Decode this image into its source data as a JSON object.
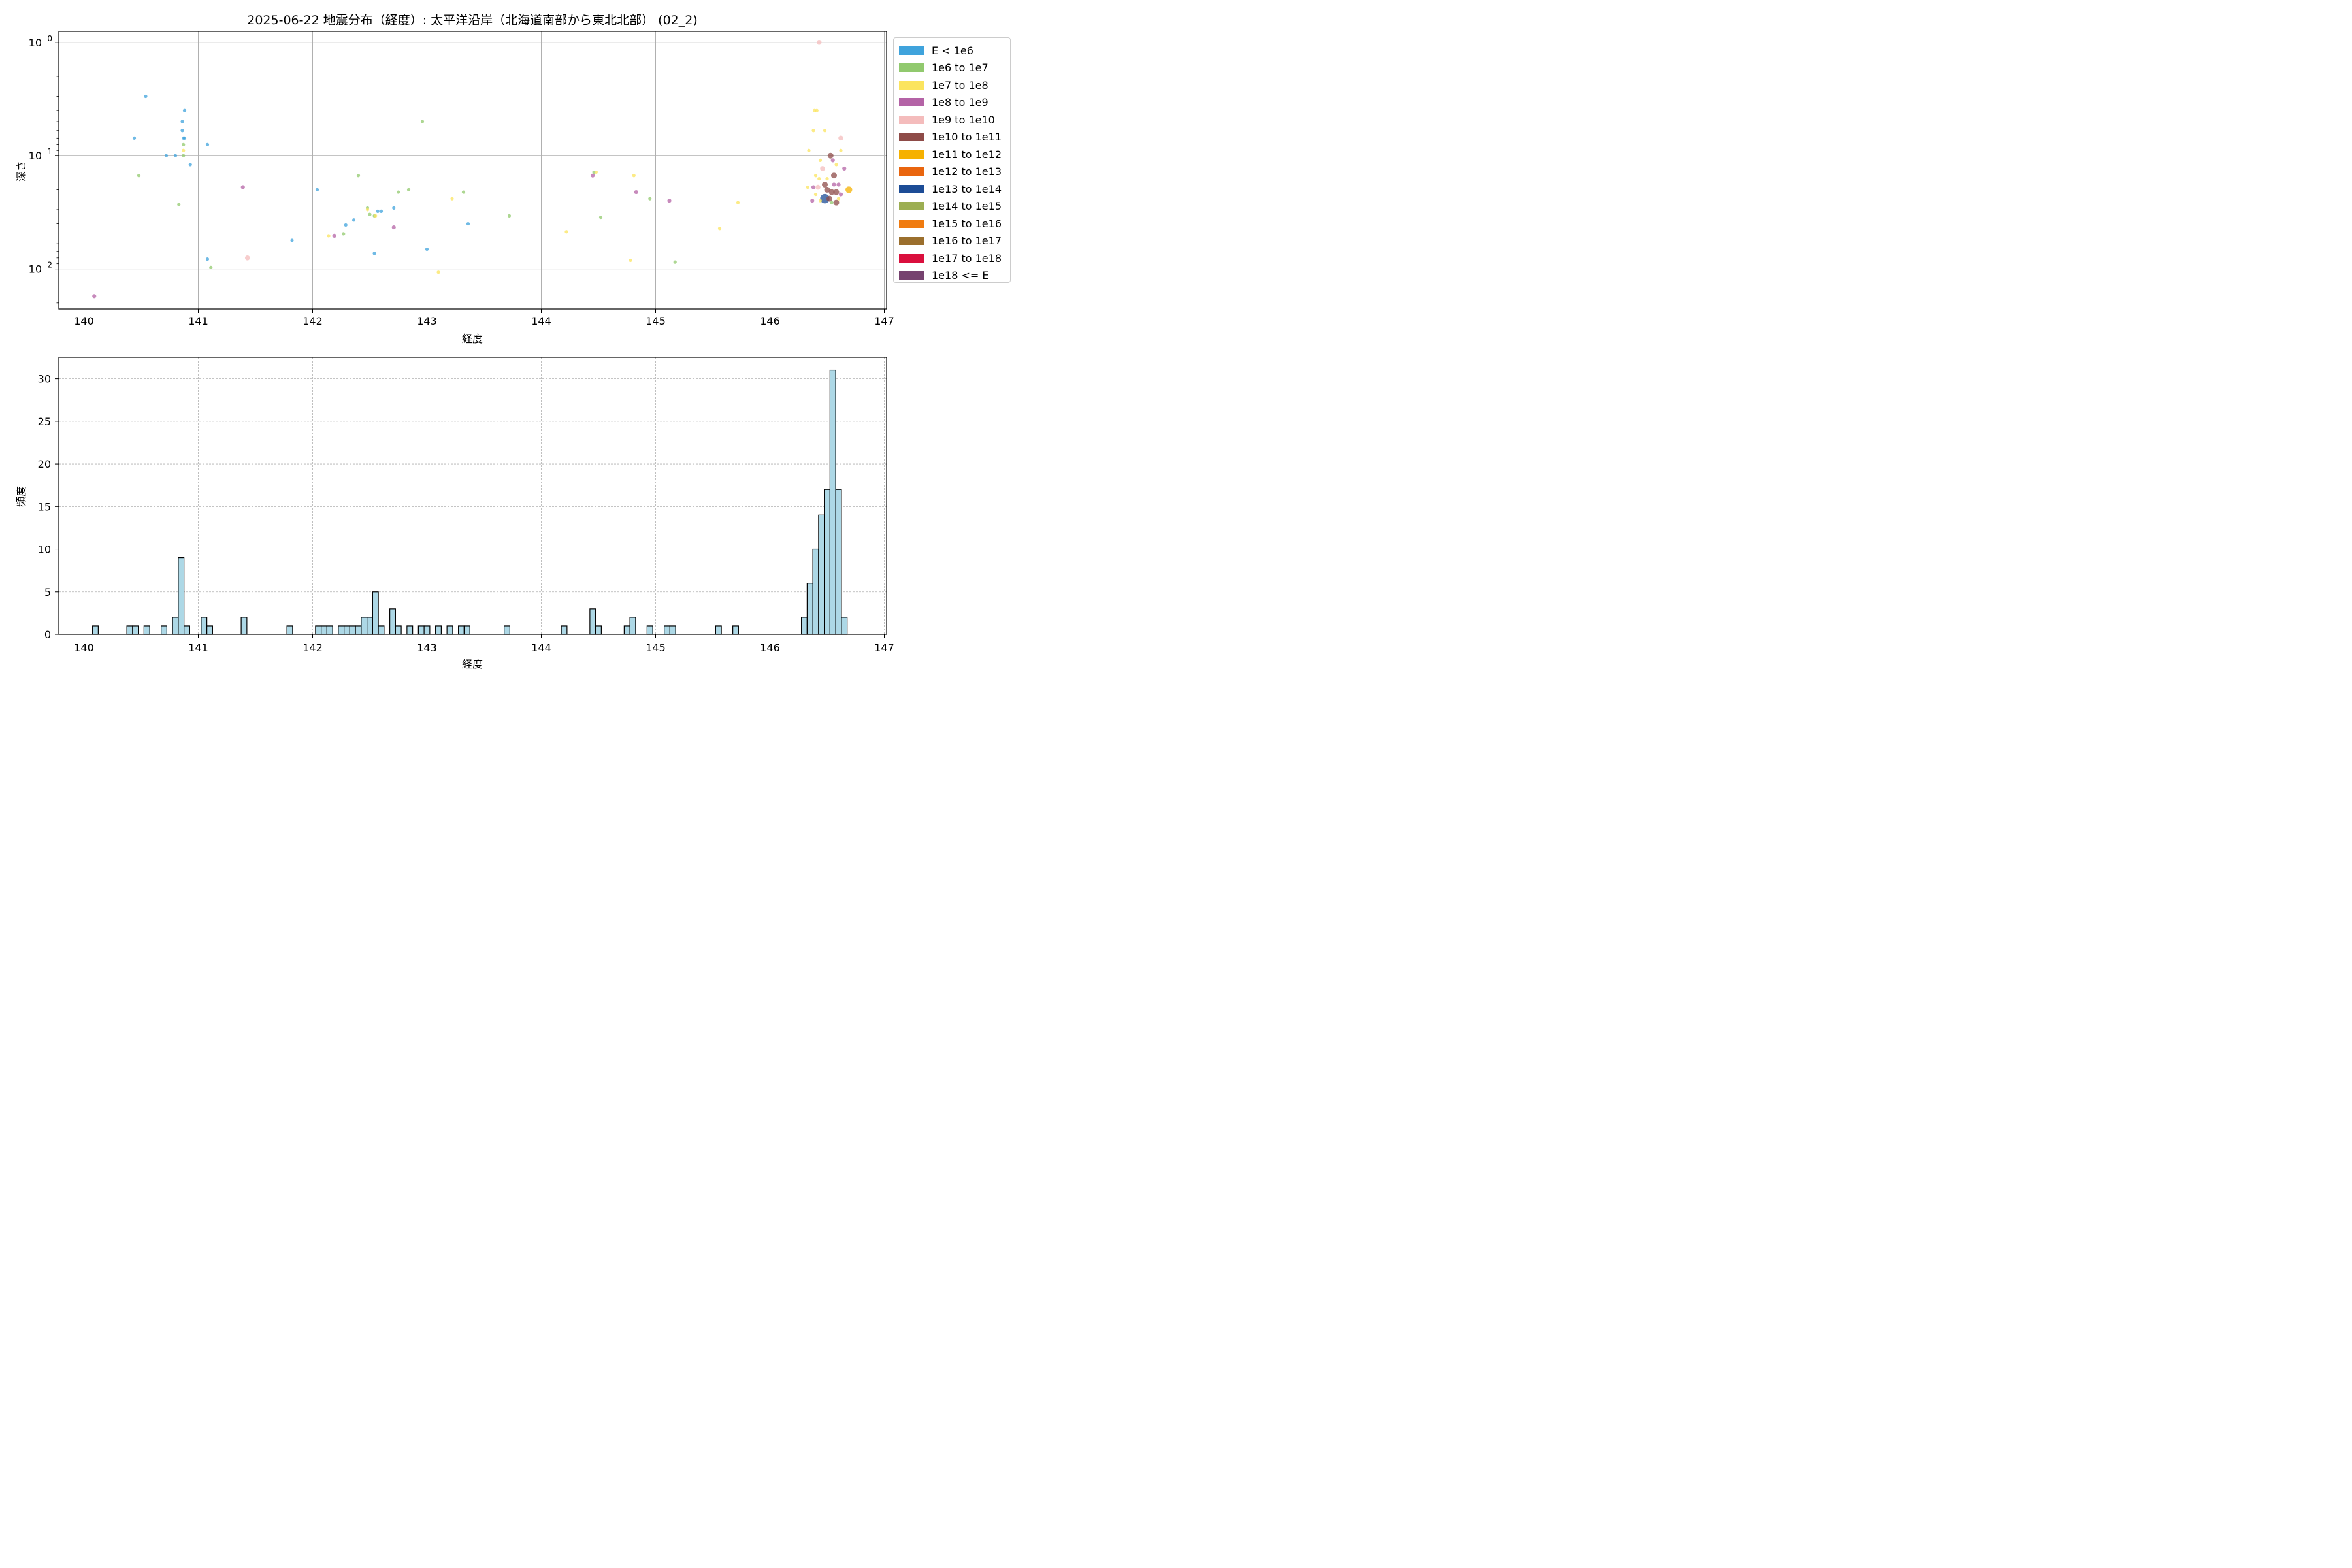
{
  "figure": {
    "title": "2025-06-22 地震分布（経度）: 太平洋沿岸（北海道南部から東北北部） (02_2)"
  },
  "chart_data": [
    {
      "type": "scatter",
      "title": "2025-06-22 地震分布（経度）: 太平洋沿岸（北海道南部から東北北部） (02_2)",
      "xlabel": "経度",
      "ylabel": "深さ",
      "xlim": [
        139.78,
        147.02
      ],
      "ylim": [
        226,
        0.8
      ],
      "yscale": "log",
      "y_inverted": true,
      "grid": true,
      "xticks": [
        "140",
        "141",
        "142",
        "143",
        "144",
        "145",
        "146",
        "147"
      ],
      "yticks": [
        {
          "value": 1,
          "base": "10",
          "exp": "0"
        },
        {
          "value": 10,
          "base": "10",
          "exp": "1"
        },
        {
          "value": 100,
          "base": "10",
          "exp": "2"
        }
      ],
      "legend_position": "outside-right",
      "legend": [
        {
          "label": "E < 1e6",
          "color": "#3fa3dc"
        },
        {
          "label": "1e6 to 1e7",
          "color": "#91c96e"
        },
        {
          "label": "1e7 to 1e8",
          "color": "#fbe45e"
        },
        {
          "label": "1e8 to 1e9",
          "color": "#b463a6"
        },
        {
          "label": "1e9 to 1e10",
          "color": "#f4bcbc"
        },
        {
          "label": "1e10 to 1e11",
          "color": "#8e4b48"
        },
        {
          "label": "1e11 to 1e12",
          "color": "#f6b100"
        },
        {
          "label": "1e12 to 1e13",
          "color": "#e9650e"
        },
        {
          "label": "1e13 to 1e14",
          "color": "#1c4c96"
        },
        {
          "label": "1e14 to 1e15",
          "color": "#9cae52"
        },
        {
          "label": "1e15 to 1e16",
          "color": "#f07b0f"
        },
        {
          "label": "1e16 to 1e17",
          "color": "#9b6f2d"
        },
        {
          "label": "1e17 to 1e18",
          "color": "#da0f3d"
        },
        {
          "label": "1e18 <= E",
          "color": "#76426f"
        }
      ],
      "points": [
        {
          "x": 140.09,
          "y": 174,
          "c": 3
        },
        {
          "x": 140.44,
          "y": 7.0,
          "c": 0
        },
        {
          "x": 140.48,
          "y": 15,
          "c": 1
        },
        {
          "x": 140.54,
          "y": 3.0,
          "c": 0
        },
        {
          "x": 140.72,
          "y": 10,
          "c": 0
        },
        {
          "x": 140.8,
          "y": 10,
          "c": 0
        },
        {
          "x": 140.83,
          "y": 27,
          "c": 1
        },
        {
          "x": 140.86,
          "y": 5.0,
          "c": 0
        },
        {
          "x": 140.86,
          "y": 6.0,
          "c": 0
        },
        {
          "x": 140.87,
          "y": 7.0,
          "c": 0
        },
        {
          "x": 140.88,
          "y": 4.0,
          "c": 0
        },
        {
          "x": 140.88,
          "y": 7.0,
          "c": 0
        },
        {
          "x": 140.87,
          "y": 8.0,
          "c": 1
        },
        {
          "x": 140.87,
          "y": 9.0,
          "c": 2
        },
        {
          "x": 140.87,
          "y": 10,
          "c": 1
        },
        {
          "x": 140.93,
          "y": 12,
          "c": 0
        },
        {
          "x": 141.08,
          "y": 8.0,
          "c": 0
        },
        {
          "x": 141.08,
          "y": 82,
          "c": 0
        },
        {
          "x": 141.11,
          "y": 97,
          "c": 1
        },
        {
          "x": 141.39,
          "y": 19,
          "c": 3
        },
        {
          "x": 141.43,
          "y": 80,
          "c": 4
        },
        {
          "x": 141.82,
          "y": 56,
          "c": 0
        },
        {
          "x": 142.04,
          "y": 20,
          "c": 0
        },
        {
          "x": 142.14,
          "y": 51,
          "c": 2
        },
        {
          "x": 142.19,
          "y": 51,
          "c": 3
        },
        {
          "x": 142.27,
          "y": 49,
          "c": 1
        },
        {
          "x": 142.29,
          "y": 41,
          "c": 0
        },
        {
          "x": 142.36,
          "y": 37,
          "c": 0
        },
        {
          "x": 142.4,
          "y": 15,
          "c": 1
        },
        {
          "x": 142.48,
          "y": 29,
          "c": 1
        },
        {
          "x": 142.48,
          "y": 30,
          "c": 2
        },
        {
          "x": 142.5,
          "y": 33,
          "c": 1
        },
        {
          "x": 142.54,
          "y": 34,
          "c": 1
        },
        {
          "x": 142.55,
          "y": 34,
          "c": 2
        },
        {
          "x": 142.54,
          "y": 73,
          "c": 0
        },
        {
          "x": 142.57,
          "y": 31,
          "c": 0
        },
        {
          "x": 142.6,
          "y": 31,
          "c": 0
        },
        {
          "x": 142.71,
          "y": 29,
          "c": 0
        },
        {
          "x": 142.71,
          "y": 43,
          "c": 3
        },
        {
          "x": 142.75,
          "y": 21,
          "c": 1
        },
        {
          "x": 142.84,
          "y": 20,
          "c": 1
        },
        {
          "x": 142.96,
          "y": 5.0,
          "c": 1
        },
        {
          "x": 143.0,
          "y": 67,
          "c": 0
        },
        {
          "x": 143.1,
          "y": 107,
          "c": 2
        },
        {
          "x": 143.22,
          "y": 24,
          "c": 2
        },
        {
          "x": 143.32,
          "y": 21,
          "c": 1
        },
        {
          "x": 143.36,
          "y": 40,
          "c": 0
        },
        {
          "x": 143.72,
          "y": 34,
          "c": 1
        },
        {
          "x": 144.22,
          "y": 47,
          "c": 2
        },
        {
          "x": 144.45,
          "y": 15,
          "c": 3
        },
        {
          "x": 144.46,
          "y": 14,
          "c": 1
        },
        {
          "x": 144.48,
          "y": 14,
          "c": 2
        },
        {
          "x": 144.52,
          "y": 35,
          "c": 1
        },
        {
          "x": 144.78,
          "y": 84,
          "c": 2
        },
        {
          "x": 144.81,
          "y": 15,
          "c": 2
        },
        {
          "x": 144.83,
          "y": 21,
          "c": 3
        },
        {
          "x": 144.95,
          "y": 24,
          "c": 1
        },
        {
          "x": 145.12,
          "y": 25,
          "c": 3
        },
        {
          "x": 145.17,
          "y": 87,
          "c": 1
        },
        {
          "x": 145.56,
          "y": 44,
          "c": 2
        },
        {
          "x": 145.72,
          "y": 26,
          "c": 2
        },
        {
          "x": 146.43,
          "y": 1.0,
          "c": 4
        },
        {
          "x": 146.39,
          "y": 4.0,
          "c": 2
        },
        {
          "x": 146.41,
          "y": 4.0,
          "c": 2
        },
        {
          "x": 146.38,
          "y": 6.0,
          "c": 2
        },
        {
          "x": 146.48,
          "y": 6.0,
          "c": 2
        },
        {
          "x": 146.62,
          "y": 7.0,
          "c": 4
        },
        {
          "x": 146.34,
          "y": 9.0,
          "c": 2
        },
        {
          "x": 146.62,
          "y": 9.0,
          "c": 2
        },
        {
          "x": 146.44,
          "y": 11,
          "c": 2
        },
        {
          "x": 146.53,
          "y": 10,
          "c": 5
        },
        {
          "x": 146.46,
          "y": 13,
          "c": 4
        },
        {
          "x": 146.55,
          "y": 11,
          "c": 3
        },
        {
          "x": 146.58,
          "y": 12,
          "c": 2
        },
        {
          "x": 146.65,
          "y": 13,
          "c": 3
        },
        {
          "x": 146.4,
          "y": 15,
          "c": 2
        },
        {
          "x": 146.43,
          "y": 16,
          "c": 2
        },
        {
          "x": 146.5,
          "y": 16,
          "c": 2
        },
        {
          "x": 146.56,
          "y": 15,
          "c": 5
        },
        {
          "x": 146.48,
          "y": 18,
          "c": 5
        },
        {
          "x": 146.56,
          "y": 18,
          "c": 3
        },
        {
          "x": 146.6,
          "y": 18,
          "c": 3
        },
        {
          "x": 146.33,
          "y": 19,
          "c": 2
        },
        {
          "x": 146.38,
          "y": 19,
          "c": 3
        },
        {
          "x": 146.42,
          "y": 19,
          "c": 4
        },
        {
          "x": 146.5,
          "y": 20,
          "c": 5
        },
        {
          "x": 146.54,
          "y": 21,
          "c": 5
        },
        {
          "x": 146.58,
          "y": 21,
          "c": 5
        },
        {
          "x": 146.62,
          "y": 22,
          "c": 3
        },
        {
          "x": 146.4,
          "y": 22,
          "c": 2
        },
        {
          "x": 146.69,
          "y": 20,
          "c": 6
        },
        {
          "x": 146.48,
          "y": 24,
          "c": 8
        },
        {
          "x": 146.52,
          "y": 24,
          "c": 5
        },
        {
          "x": 146.58,
          "y": 26,
          "c": 5
        },
        {
          "x": 146.6,
          "y": 24,
          "c": 2
        },
        {
          "x": 146.37,
          "y": 25,
          "c": 3
        },
        {
          "x": 146.54,
          "y": 26,
          "c": 1
        },
        {
          "x": 146.44,
          "y": 25,
          "c": 2
        }
      ]
    },
    {
      "type": "bar",
      "subtype": "histogram",
      "title": "",
      "xlabel": "経度",
      "ylabel": "頻度",
      "xlim": [
        139.78,
        147.02
      ],
      "ylim": [
        0,
        32.5
      ],
      "grid": true,
      "bar_color": "#add8e6",
      "bar_edge": "#000000",
      "bin_width": 0.05,
      "xticks": [
        "140",
        "141",
        "142",
        "143",
        "144",
        "145",
        "146",
        "147"
      ],
      "yticks": [
        "0",
        "5",
        "10",
        "15",
        "20",
        "25",
        "30"
      ],
      "bins": [
        {
          "x": 140.1,
          "count": 1
        },
        {
          "x": 140.4,
          "count": 1
        },
        {
          "x": 140.45,
          "count": 1
        },
        {
          "x": 140.55,
          "count": 1
        },
        {
          "x": 140.7,
          "count": 1
        },
        {
          "x": 140.8,
          "count": 2
        },
        {
          "x": 140.85,
          "count": 9
        },
        {
          "x": 140.9,
          "count": 1
        },
        {
          "x": 141.05,
          "count": 2
        },
        {
          "x": 141.1,
          "count": 1
        },
        {
          "x": 141.4,
          "count": 2
        },
        {
          "x": 141.8,
          "count": 1
        },
        {
          "x": 142.05,
          "count": 1
        },
        {
          "x": 142.1,
          "count": 1
        },
        {
          "x": 142.15,
          "count": 1
        },
        {
          "x": 142.25,
          "count": 1
        },
        {
          "x": 142.3,
          "count": 1
        },
        {
          "x": 142.35,
          "count": 1
        },
        {
          "x": 142.4,
          "count": 1
        },
        {
          "x": 142.45,
          "count": 2
        },
        {
          "x": 142.5,
          "count": 2
        },
        {
          "x": 142.55,
          "count": 5
        },
        {
          "x": 142.6,
          "count": 1
        },
        {
          "x": 142.7,
          "count": 3
        },
        {
          "x": 142.75,
          "count": 1
        },
        {
          "x": 142.85,
          "count": 1
        },
        {
          "x": 142.95,
          "count": 1
        },
        {
          "x": 143.0,
          "count": 1
        },
        {
          "x": 143.1,
          "count": 1
        },
        {
          "x": 143.2,
          "count": 1
        },
        {
          "x": 143.3,
          "count": 1
        },
        {
          "x": 143.35,
          "count": 1
        },
        {
          "x": 143.7,
          "count": 1
        },
        {
          "x": 144.2,
          "count": 1
        },
        {
          "x": 144.45,
          "count": 3
        },
        {
          "x": 144.5,
          "count": 1
        },
        {
          "x": 144.75,
          "count": 1
        },
        {
          "x": 144.8,
          "count": 2
        },
        {
          "x": 144.95,
          "count": 1
        },
        {
          "x": 145.1,
          "count": 1
        },
        {
          "x": 145.15,
          "count": 1
        },
        {
          "x": 145.55,
          "count": 1
        },
        {
          "x": 145.7,
          "count": 1
        },
        {
          "x": 146.3,
          "count": 2
        },
        {
          "x": 146.35,
          "count": 6
        },
        {
          "x": 146.4,
          "count": 10
        },
        {
          "x": 146.45,
          "count": 14
        },
        {
          "x": 146.5,
          "count": 17
        },
        {
          "x": 146.55,
          "count": 31
        },
        {
          "x": 146.6,
          "count": 17
        },
        {
          "x": 146.65,
          "count": 2
        }
      ]
    }
  ]
}
